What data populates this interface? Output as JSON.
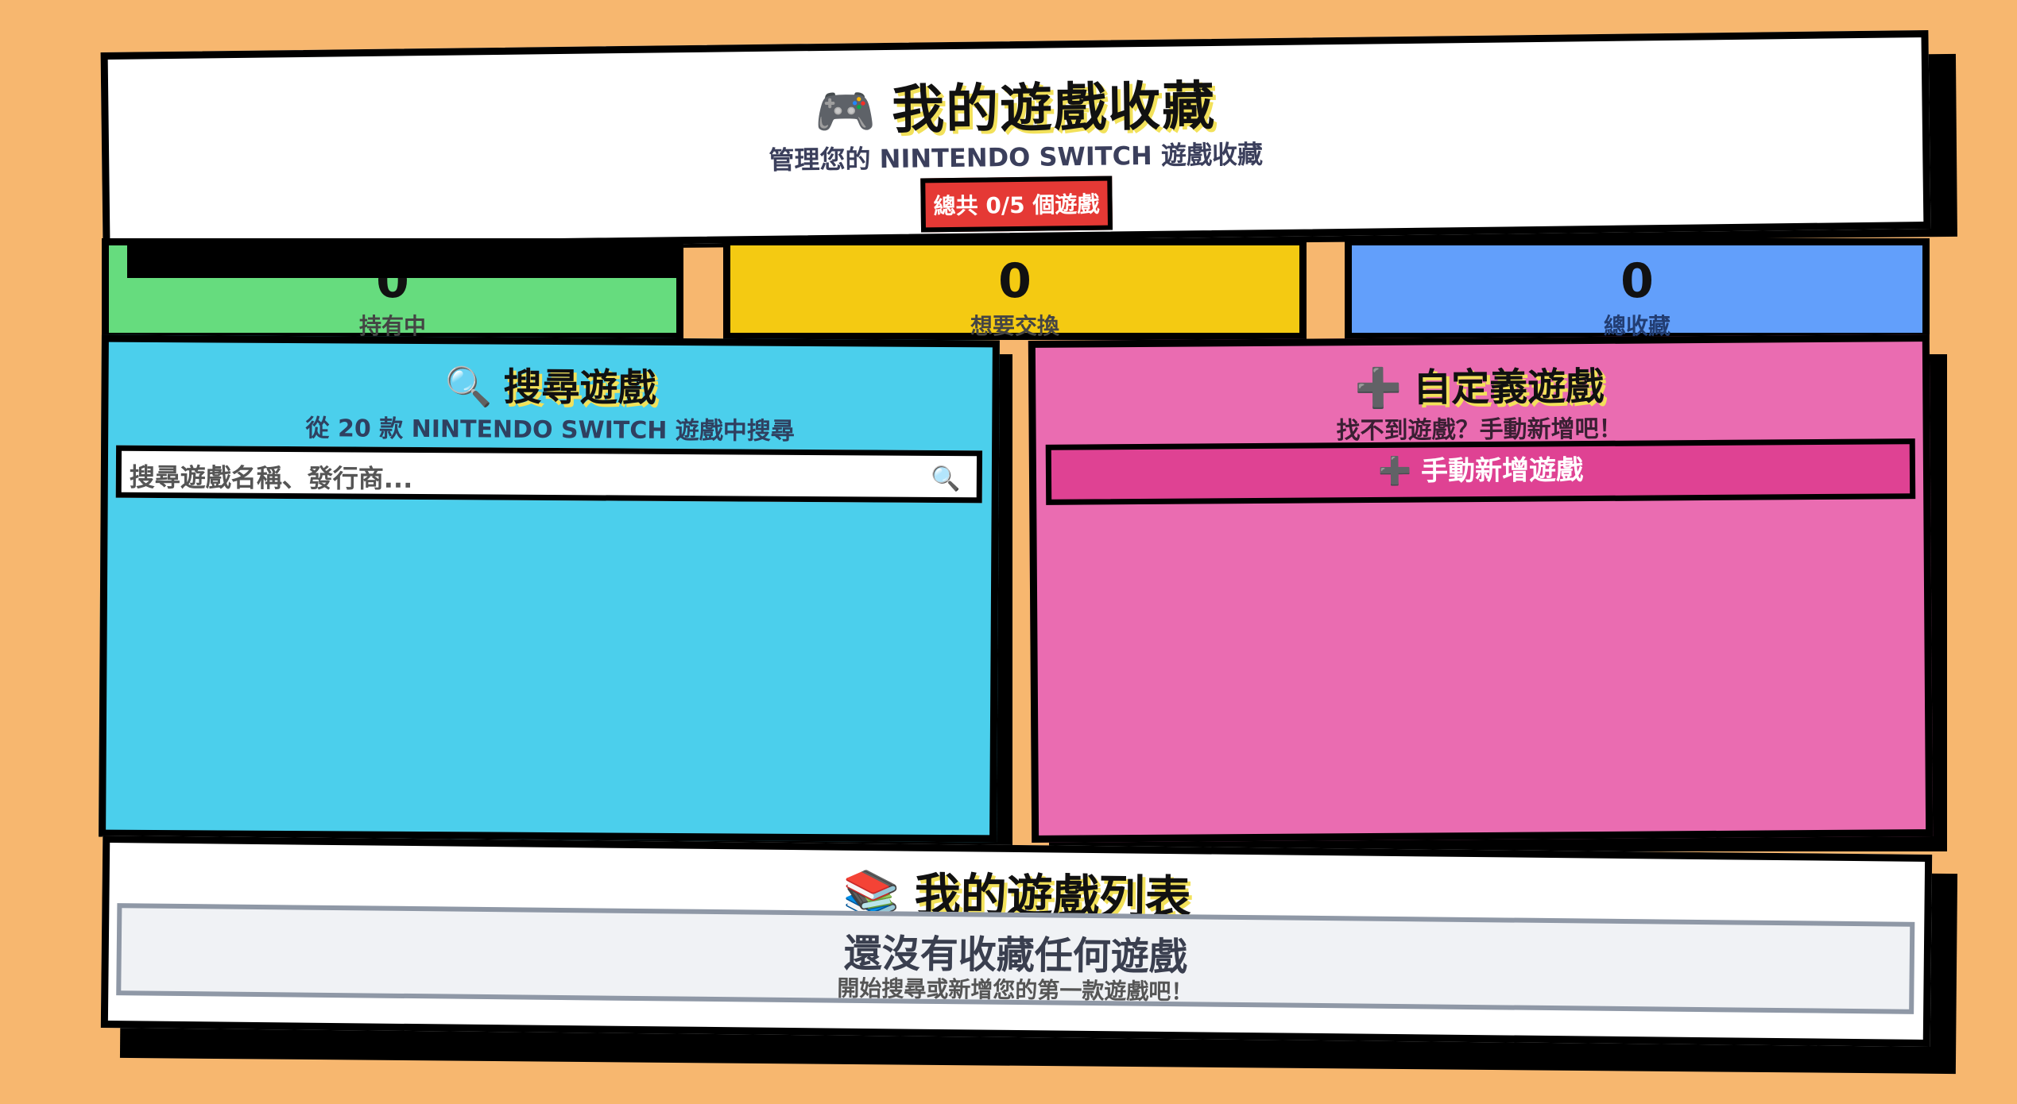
{
  "header": {
    "title_emoji": "🎮",
    "title": "我的遊戲收藏",
    "subtitle": "管理您的 NINTENDO SWITCH 遊戲收藏",
    "count_badge": "總共 0/5 個遊戲"
  },
  "stats": {
    "owned": {
      "value": "0",
      "label": "持有中"
    },
    "trade": {
      "value": "0",
      "label": "想要交換"
    },
    "total": {
      "value": "0",
      "label": "總收藏"
    }
  },
  "search_panel": {
    "emoji": "🔍",
    "title": "搜尋遊戲",
    "subtitle": "從 20 款 NINTENDO SWITCH 遊戲中搜尋",
    "placeholder": "搜尋遊戲名稱、發行商...",
    "icon": "search-icon"
  },
  "custom_panel": {
    "emoji": "➕",
    "title": "自定義遊戲",
    "subtitle": "找不到遊戲？手動新增吧！",
    "add_button": "➕ 手動新增遊戲"
  },
  "list_panel": {
    "emoji": "📚",
    "title": "我的遊戲列表",
    "empty_title": "還沒有收藏任何遊戲",
    "empty_subtitle": "開始搜尋或新增您的第一款遊戲吧！"
  },
  "colors": {
    "background": "#f7b76f",
    "owned": "#66dc7e",
    "trade": "#f4ca12",
    "total": "#629ffb",
    "search": "#4bcfec",
    "custom": "#ea6cb1",
    "badge": "#e53935"
  }
}
